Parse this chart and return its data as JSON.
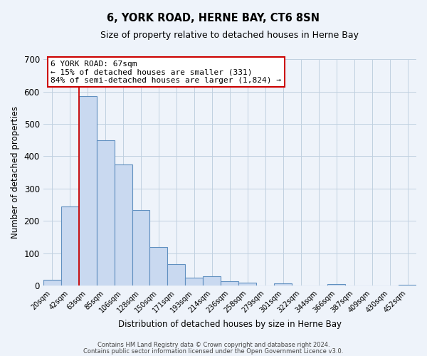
{
  "title": "6, YORK ROAD, HERNE BAY, CT6 8SN",
  "subtitle": "Size of property relative to detached houses in Herne Bay",
  "xlabel": "Distribution of detached houses by size in Herne Bay",
  "ylabel": "Number of detached properties",
  "bar_labels": [
    "20sqm",
    "42sqm",
    "63sqm",
    "85sqm",
    "106sqm",
    "128sqm",
    "150sqm",
    "171sqm",
    "193sqm",
    "214sqm",
    "236sqm",
    "258sqm",
    "279sqm",
    "301sqm",
    "322sqm",
    "344sqm",
    "366sqm",
    "387sqm",
    "409sqm",
    "430sqm",
    "452sqm"
  ],
  "bar_heights": [
    18,
    245,
    585,
    450,
    375,
    235,
    120,
    67,
    25,
    30,
    15,
    10,
    0,
    8,
    0,
    0,
    5,
    0,
    0,
    0,
    3
  ],
  "bar_color": "#c9d9f0",
  "bar_edge_color": "#6090c0",
  "grid_color": "#c0d0e0",
  "background_color": "#eef3fa",
  "vline_x_index": 1.5,
  "vline_color": "#cc0000",
  "annotation_box_text": "6 YORK ROAD: 67sqm\n← 15% of detached houses are smaller (331)\n84% of semi-detached houses are larger (1,824) →",
  "annotation_box_color": "#ffffff",
  "annotation_box_edge_color": "#cc0000",
  "ylim": [
    0,
    700
  ],
  "yticks": [
    0,
    100,
    200,
    300,
    400,
    500,
    600,
    700
  ],
  "footer_line1": "Contains HM Land Registry data © Crown copyright and database right 2024.",
  "footer_line2": "Contains public sector information licensed under the Open Government Licence v3.0."
}
